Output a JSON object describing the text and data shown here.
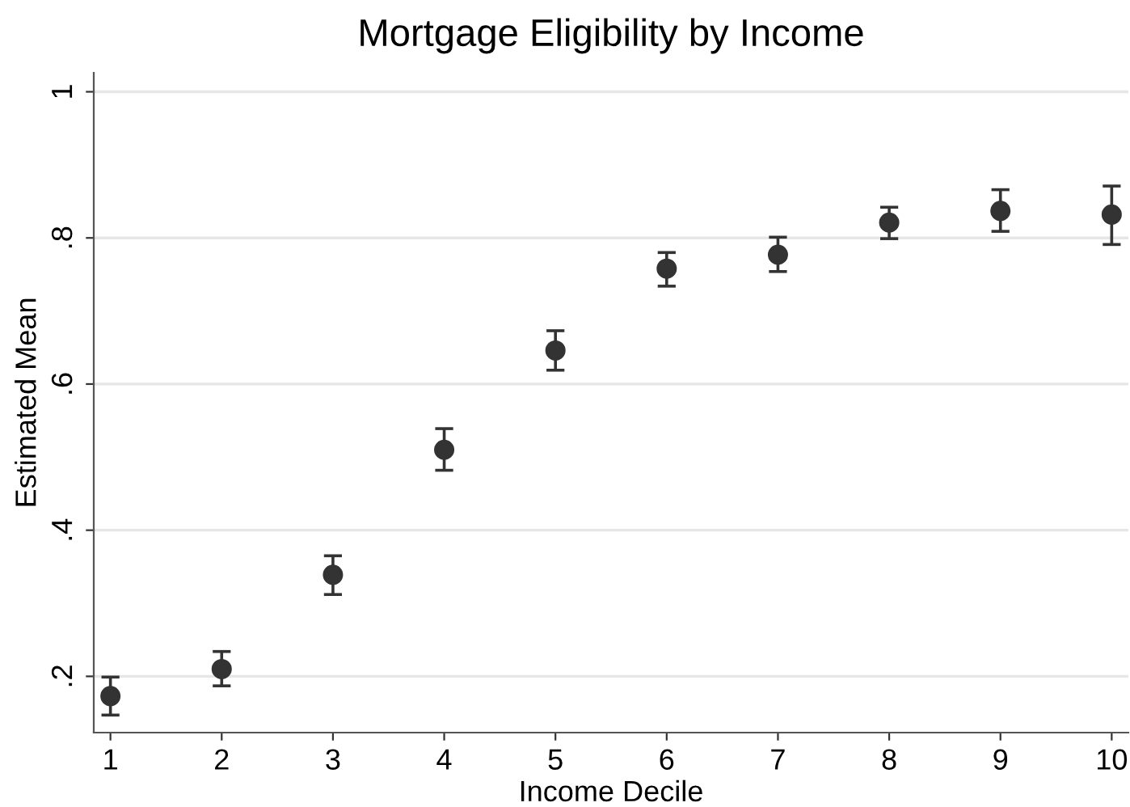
{
  "chart_data": {
    "type": "scatter",
    "title": "Mortgage Eligibility by Income",
    "xlabel": "Income Decile",
    "ylabel": "Estimated Mean",
    "x": [
      1,
      2,
      3,
      4,
      5,
      6,
      7,
      8,
      9,
      10
    ],
    "values": [
      0.173,
      0.21,
      0.339,
      0.51,
      0.646,
      0.758,
      0.777,
      0.821,
      0.837,
      0.832
    ],
    "errors": [
      [
        0.147,
        0.199
      ],
      [
        0.187,
        0.234
      ],
      [
        0.312,
        0.365
      ],
      [
        0.482,
        0.539
      ],
      [
        0.619,
        0.673
      ],
      [
        0.734,
        0.78
      ],
      [
        0.754,
        0.801
      ],
      [
        0.799,
        0.842
      ],
      [
        0.809,
        0.866
      ],
      [
        0.791,
        0.871
      ]
    ],
    "color": "#333333",
    "marker": "circle",
    "xlim": [
      0.85,
      10.15
    ],
    "ylim": [
      0.123,
      1.026
    ],
    "xticks": [
      1,
      2,
      3,
      4,
      5,
      6,
      7,
      8,
      9,
      10
    ],
    "yticks": [
      {
        "value": 0.2,
        "label": ".2"
      },
      {
        "value": 0.4,
        "label": ".4"
      },
      {
        "value": 0.6,
        "label": ".6"
      },
      {
        "value": 0.8,
        "label": ".8"
      },
      {
        "value": 1,
        "label": "1"
      }
    ],
    "grid": "y"
  }
}
